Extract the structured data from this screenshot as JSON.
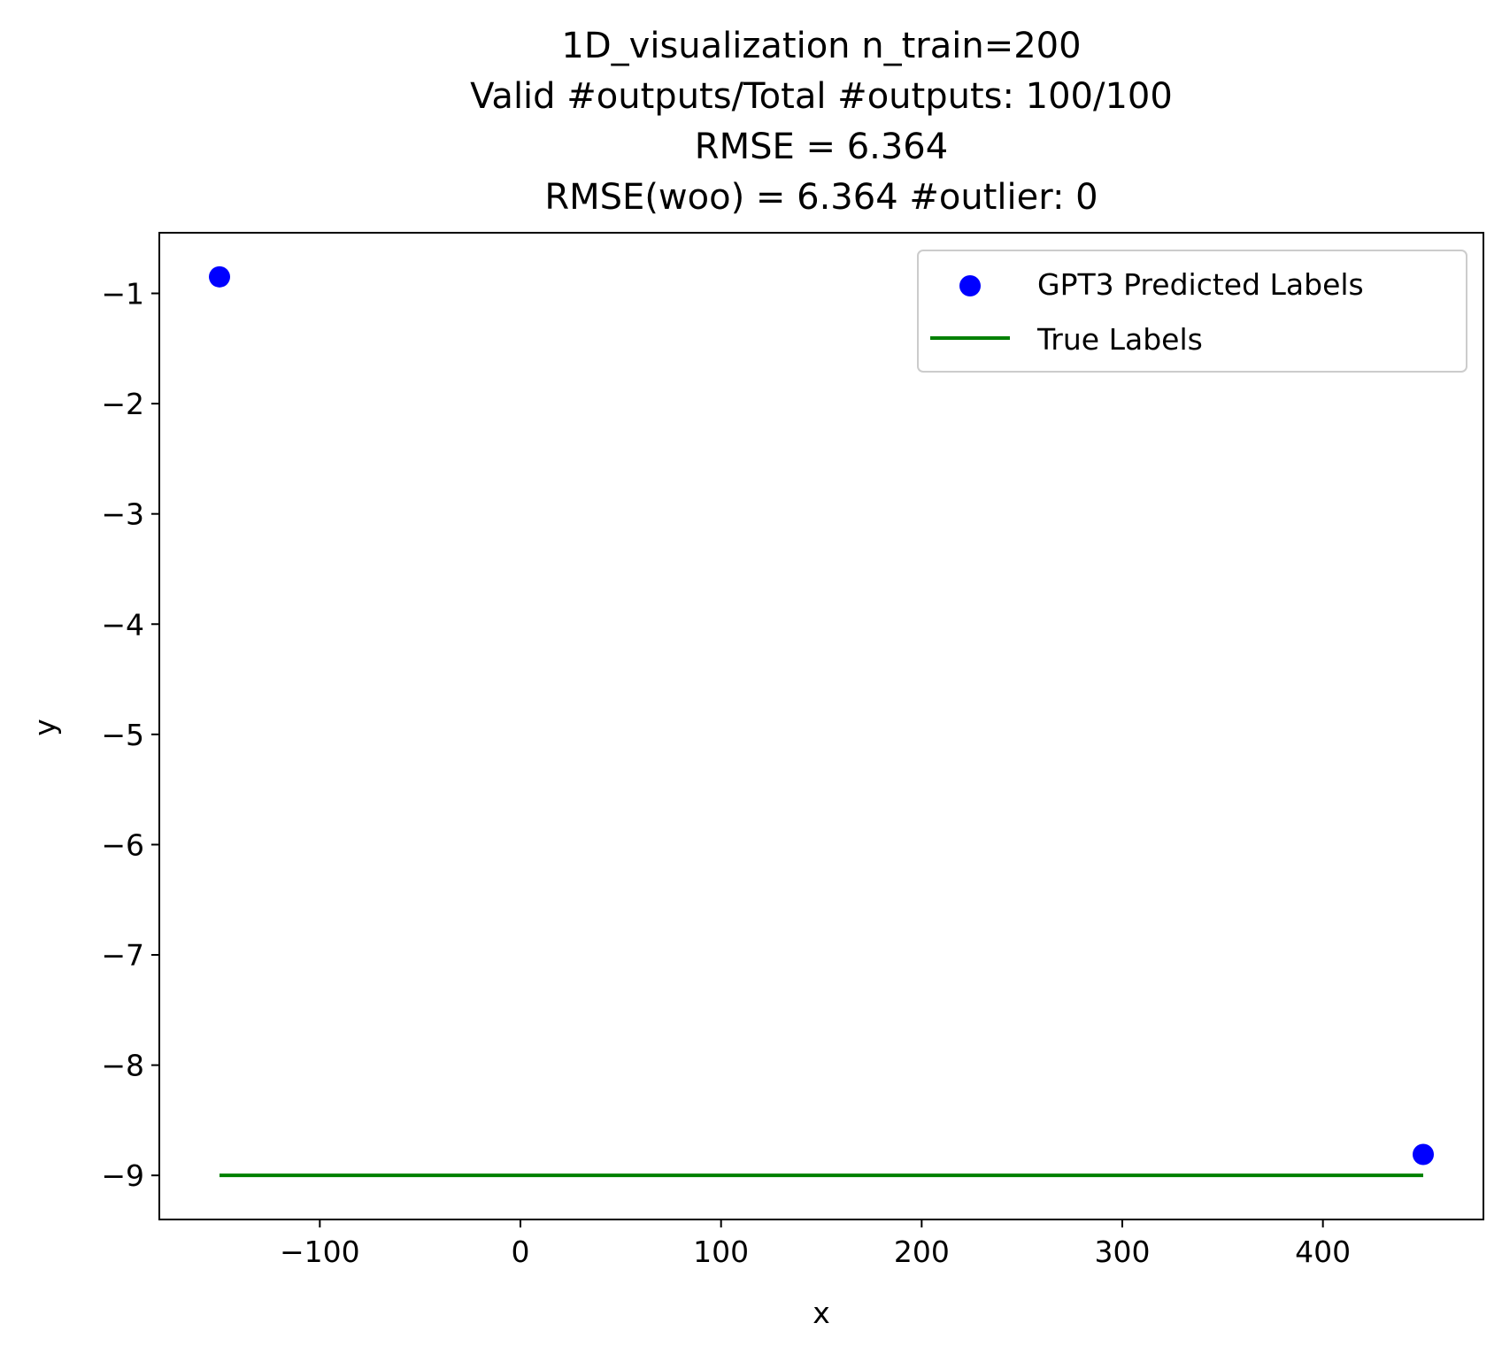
{
  "chart_data": {
    "type": "scatter",
    "title_lines": [
      "1D_visualization  n_train=200",
      "Valid #outputs/Total #outputs: 100/100",
      "RMSE       = 6.364",
      "RMSE(woo) = 6.364   #outlier: 0"
    ],
    "xlabel": "x",
    "ylabel": "y",
    "xlim": [
      -180,
      480
    ],
    "ylim": [
      -9.4,
      -0.45
    ],
    "xticks": [
      -100,
      0,
      100,
      200,
      300,
      400
    ],
    "xtick_labels": [
      "−100",
      "0",
      "100",
      "200",
      "300",
      "400"
    ],
    "yticks": [
      -1,
      -2,
      -3,
      -4,
      -5,
      -6,
      -7,
      -8,
      -9
    ],
    "ytick_labels": [
      "−1",
      "−2",
      "−3",
      "−4",
      "−5",
      "−6",
      "−7",
      "−8",
      "−9"
    ],
    "grid": false,
    "legend_position": "upper right",
    "series": [
      {
        "name": "GPT3 Predicted Labels",
        "kind": "scatter",
        "color": "#0000ff",
        "points": [
          [
            -150,
            -0.85
          ],
          [
            450,
            -8.81
          ]
        ]
      },
      {
        "name": "True Labels",
        "kind": "line",
        "color": "#008000",
        "points": [
          [
            -150,
            -9.0
          ],
          [
            450,
            -9.0
          ]
        ]
      }
    ]
  }
}
